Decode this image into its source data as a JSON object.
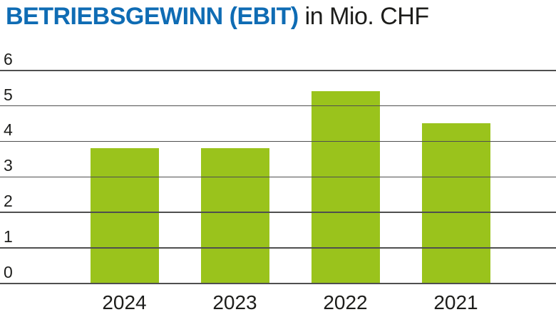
{
  "title": {
    "main": "BETRIEBSGEWINN (EBIT)",
    "suffix": " in Mio. CHF"
  },
  "chart_data": {
    "type": "bar",
    "title": "BETRIEBSGEWINN (EBIT) in Mio. CHF",
    "categories": [
      "2024",
      "2023",
      "2022",
      "2021"
    ],
    "values": [
      3.8,
      3.8,
      5.4,
      4.5
    ],
    "xlabel": "",
    "ylabel": "",
    "ylim": [
      0,
      6
    ],
    "yticks": [
      0,
      1,
      2,
      3,
      4,
      5,
      6
    ],
    "grid": true,
    "legend": false,
    "colors": {
      "bar": "#9ac31c",
      "grid": "#4f4f4f",
      "title_accent": "#0f6cb4",
      "text": "#1d1d1b",
      "background": "#ffffff"
    }
  }
}
